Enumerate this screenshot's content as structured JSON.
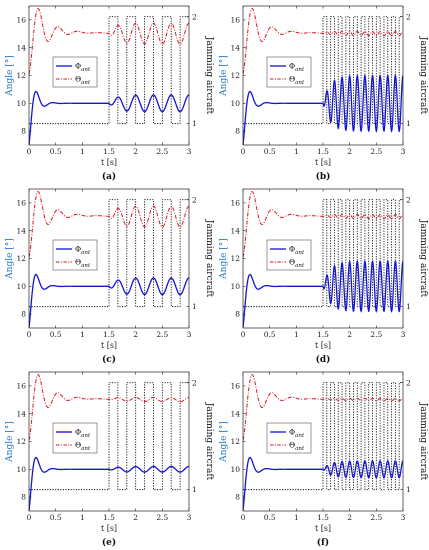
{
  "figure": {
    "ylabel_left": "Angle [°]",
    "ylabel_right": "Jamming aircraft",
    "xlabel": "t [s]"
  },
  "chart_data": [
    {
      "type": "line",
      "caption": "(a)",
      "xlim": [
        0,
        3
      ],
      "ylim_left": [
        7,
        17
      ],
      "ylim_right": [
        0.8,
        2.1
      ],
      "xticks": [
        "0",
        "0.5",
        "1",
        "1.5",
        "2",
        "2.5",
        "3"
      ],
      "yticks_left": [
        "8",
        "10",
        "12",
        "14",
        "16"
      ],
      "yticks_right": [
        "1",
        "2"
      ],
      "xlabel": "t [s]",
      "ylabel_left": "Angle [°]",
      "ylabel_right": "Jamming aircraft",
      "legend": {
        "position": "middle-left"
      },
      "series": [
        {
          "name": "Φ",
          "subscript": "ant",
          "color": "#1414d6",
          "style": "solid",
          "baseline": 10.0,
          "osc_amplitude": 0.6,
          "osc_frequency_hz": 3
        },
        {
          "name": "Θ",
          "subscript": "ant",
          "color": "#e0141e",
          "style": "dashdot",
          "baseline": 15.0,
          "osc_amplitude": 0.75,
          "osc_frequency_hz": 3
        },
        {
          "name": "Jamming aircraft",
          "color": "#111111",
          "style": "dotted",
          "switch_start": 1.5,
          "switch_frequency_hz": 3,
          "axis": "right"
        }
      ]
    },
    {
      "type": "line",
      "caption": "(b)",
      "xlim": [
        0,
        3
      ],
      "ylim_left": [
        7,
        17
      ],
      "ylim_right": [
        0.8,
        2.1
      ],
      "xticks": [
        "0",
        "0.5",
        "1",
        "1.5",
        "2",
        "2.5",
        "3"
      ],
      "yticks_left": [
        "8",
        "10",
        "12",
        "14",
        "16"
      ],
      "yticks_right": [
        "1",
        "2"
      ],
      "xlabel": "t [s]",
      "ylabel_left": "Angle [°]",
      "ylabel_right": "Jamming aircraft",
      "legend": {
        "position": "middle-left"
      },
      "series": [
        {
          "name": "Φ",
          "subscript": "ant",
          "color": "#1414d6",
          "style": "solid",
          "baseline": 10.0,
          "osc_amplitude": 2.0,
          "osc_frequency_hz": 7
        },
        {
          "name": "Θ",
          "subscript": "ant",
          "color": "#e0141e",
          "style": "dashdot",
          "baseline": 15.0,
          "osc_amplitude": 0.15,
          "osc_frequency_hz": 7
        },
        {
          "name": "Jamming aircraft",
          "color": "#111111",
          "style": "dotted",
          "switch_start": 1.5,
          "switch_frequency_hz": 7,
          "axis": "right"
        }
      ]
    },
    {
      "type": "line",
      "caption": "(c)",
      "xlim": [
        0,
        3
      ],
      "ylim_left": [
        7,
        17
      ],
      "ylim_right": [
        0.8,
        2.1
      ],
      "xticks": [
        "0",
        "0.5",
        "1",
        "1.5",
        "2",
        "2.5",
        "3"
      ],
      "yticks_left": [
        "8",
        "10",
        "12",
        "14",
        "16"
      ],
      "yticks_right": [
        "1",
        "2"
      ],
      "xlabel": "t [s]",
      "ylabel_left": "Angle [°]",
      "ylabel_right": "Jamming aircraft",
      "legend": {
        "position": "middle-left"
      },
      "series": [
        {
          "name": "Φ",
          "subscript": "ant",
          "color": "#1414d6",
          "style": "solid",
          "baseline": 10.0,
          "osc_amplitude": 0.6,
          "osc_frequency_hz": 3
        },
        {
          "name": "Θ",
          "subscript": "ant",
          "color": "#e0141e",
          "style": "dashdot",
          "baseline": 15.0,
          "osc_amplitude": 0.75,
          "osc_frequency_hz": 3
        },
        {
          "name": "Jamming aircraft",
          "color": "#111111",
          "style": "dotted",
          "switch_start": 1.5,
          "switch_frequency_hz": 3,
          "axis": "right"
        }
      ]
    },
    {
      "type": "line",
      "caption": "(d)",
      "xlim": [
        0,
        3
      ],
      "ylim_left": [
        7,
        17
      ],
      "ylim_right": [
        0.8,
        2.1
      ],
      "xticks": [
        "0",
        "0.5",
        "1",
        "1.5",
        "2",
        "2.5",
        "3"
      ],
      "yticks_left": [
        "8",
        "10",
        "12",
        "14",
        "16"
      ],
      "yticks_right": [
        "1",
        "2"
      ],
      "xlabel": "t [s]",
      "ylabel_left": "Angle [°]",
      "ylabel_right": "Jamming aircraft",
      "legend": {
        "position": "middle-left"
      },
      "series": [
        {
          "name": "Φ",
          "subscript": "ant",
          "color": "#1414d6",
          "style": "solid",
          "baseline": 10.0,
          "osc_amplitude": 1.8,
          "osc_frequency_hz": 7
        },
        {
          "name": "Θ",
          "subscript": "ant",
          "color": "#e0141e",
          "style": "dashdot",
          "baseline": 15.0,
          "osc_amplitude": 0.15,
          "osc_frequency_hz": 7
        },
        {
          "name": "Jamming aircraft",
          "color": "#111111",
          "style": "dotted",
          "switch_start": 1.5,
          "switch_frequency_hz": 7,
          "axis": "right"
        }
      ]
    },
    {
      "type": "line",
      "caption": "(e)",
      "xlim": [
        0,
        3
      ],
      "ylim_left": [
        7,
        17
      ],
      "ylim_right": [
        0.8,
        2.1
      ],
      "xticks": [
        "0",
        "0.5",
        "1",
        "1.5",
        "2",
        "2.5",
        "3"
      ],
      "yticks_left": [
        "8",
        "10",
        "12",
        "14",
        "16"
      ],
      "yticks_right": [
        "1",
        "2"
      ],
      "xlabel": "t [s]",
      "ylabel_left": "Angle [°]",
      "ylabel_right": "Jamming aircraft",
      "legend": {
        "position": "middle-left"
      },
      "series": [
        {
          "name": "Φ",
          "subscript": "ant",
          "color": "#1414d6",
          "style": "solid",
          "baseline": 10.0,
          "osc_amplitude": 0.2,
          "osc_frequency_hz": 3
        },
        {
          "name": "Θ",
          "subscript": "ant",
          "color": "#e0141e",
          "style": "dashdot",
          "baseline": 15.0,
          "osc_amplitude": 0.15,
          "osc_frequency_hz": 3
        },
        {
          "name": "Jamming aircraft",
          "color": "#111111",
          "style": "dotted",
          "switch_start": 1.5,
          "switch_frequency_hz": 3,
          "axis": "right"
        }
      ]
    },
    {
      "type": "line",
      "caption": "(f)",
      "xlim": [
        0,
        3
      ],
      "ylim_left": [
        7,
        17
      ],
      "ylim_right": [
        0.8,
        2.1
      ],
      "xticks": [
        "0",
        "0.5",
        "1",
        "1.5",
        "2",
        "2.5",
        "3"
      ],
      "yticks_left": [
        "8",
        "10",
        "12",
        "14",
        "16"
      ],
      "yticks_right": [
        "1",
        "2"
      ],
      "xlabel": "t [s]",
      "ylabel_left": "Angle [°]",
      "ylabel_right": "Jamming aircraft",
      "legend": {
        "position": "middle-left"
      },
      "series": [
        {
          "name": "Φ",
          "subscript": "ant",
          "color": "#1414d6",
          "style": "solid",
          "baseline": 10.0,
          "osc_amplitude": 0.6,
          "osc_frequency_hz": 7
        },
        {
          "name": "Θ",
          "subscript": "ant",
          "color": "#e0141e",
          "style": "dashdot",
          "baseline": 15.0,
          "osc_amplitude": 0.08,
          "osc_frequency_hz": 7
        },
        {
          "name": "Jamming aircraft",
          "color": "#111111",
          "style": "dotted",
          "switch_start": 1.5,
          "switch_frequency_hz": 7,
          "axis": "right"
        }
      ]
    }
  ]
}
